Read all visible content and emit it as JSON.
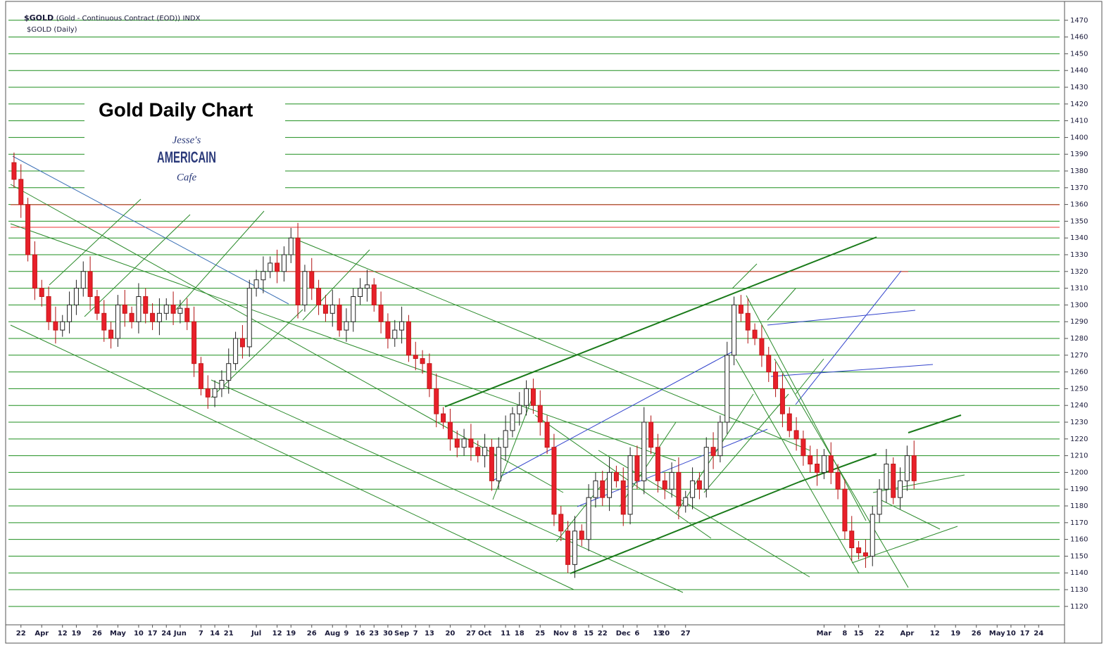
{
  "chart_data": {
    "type": "candlestick",
    "title": "$GOLD",
    "title_detail": "(Gold - Continuous Contract (EOD))",
    "exchange": "INDX",
    "subtitle": "$GOLD (Daily)",
    "annotation": "Gold Daily Chart",
    "logo": [
      "Jesse's",
      "AMERICAIN",
      "Cafe"
    ],
    "categories": [
      null,
      "22",
      null,
      null,
      "Apr",
      null,
      null,
      "12",
      null,
      "19",
      null,
      null,
      "26",
      null,
      null,
      "May",
      null,
      null,
      "10",
      null,
      "17",
      null,
      "24",
      null,
      "Jun",
      null,
      null,
      "7",
      null,
      "14",
      null,
      "21",
      null,
      null,
      null,
      "Jul",
      null,
      null,
      "12",
      null,
      "19",
      null,
      null,
      "26",
      null,
      null,
      "Aug",
      null,
      "9",
      null,
      "16",
      null,
      "23",
      null,
      "30",
      null,
      "Sep",
      null,
      "7",
      null,
      "13",
      null,
      null,
      "20",
      null,
      null,
      "27",
      null,
      "Oct",
      null,
      null,
      "11",
      null,
      "18",
      null,
      null,
      "25",
      null,
      null,
      "Nov",
      null,
      "8",
      null,
      "15",
      null,
      "22",
      null,
      null,
      "Dec",
      null,
      "6",
      null,
      null,
      "13",
      "20",
      null,
      null,
      "27",
      null,
      null,
      null,
      null,
      null,
      null,
      null,
      null,
      null,
      null,
      null,
      null,
      null,
      null,
      null,
      null,
      null,
      null,
      null,
      "Mar",
      null,
      null,
      "8",
      null,
      "15",
      null,
      null,
      "22",
      null,
      null,
      null,
      "Apr",
      null,
      null,
      null,
      "12",
      null,
      null,
      "19",
      null,
      null,
      "26",
      null,
      null,
      "May",
      null,
      "10",
      null,
      "17",
      null,
      "24",
      null
    ],
    "open": [
      1385,
      1375,
      1360,
      1330,
      1310,
      1305,
      1290,
      1285,
      1290,
      1300,
      1310,
      1320,
      1305,
      1295,
      1285,
      1280,
      1300,
      1295,
      1290,
      1305,
      1295,
      1290,
      1295,
      1300,
      1295,
      1298,
      1290,
      1265,
      1250,
      1245,
      1250,
      1255,
      1265,
      1280,
      1275,
      1310,
      1315,
      1320,
      1325,
      1320,
      1330,
      1340,
      1300,
      1320,
      1310,
      1300,
      1295,
      1300,
      1285,
      1290,
      1305,
      1310,
      1312,
      1300,
      1290,
      1280,
      1285,
      1290,
      1270,
      1268,
      1265,
      1250,
      1235,
      1230,
      1220,
      1215,
      1220,
      1215,
      1210,
      1215,
      1195,
      1215,
      1225,
      1235,
      1240,
      1250,
      1240,
      1230,
      1215,
      1175,
      1165,
      1145,
      1165,
      1160,
      1185,
      1195,
      1185,
      1200,
      1195,
      1175,
      1210,
      1195,
      1230,
      1215,
      1195,
      1190,
      1200,
      1180,
      1185,
      1195,
      1190,
      1215,
      1210,
      1230,
      1270,
      1300,
      1295,
      1285,
      1280,
      1270,
      1260,
      1250,
      1235,
      1225,
      1220,
      1210,
      1205,
      1200,
      1210,
      1200,
      1190,
      1165,
      1155,
      1152,
      1150,
      1175,
      1190,
      1205,
      1185,
      1195,
      1210,
      null,
      null,
      null,
      null,
      null,
      null,
      null,
      null,
      null,
      null,
      null,
      null,
      null,
      null,
      null,
      null,
      null,
      null,
      null
    ],
    "high": [
      1391,
      1384,
      1364,
      1338,
      1315,
      1311,
      1299,
      1294,
      1308,
      1315,
      1326,
      1329,
      1309,
      1303,
      1290,
      1306,
      1309,
      1299,
      1313,
      1310,
      1301,
      1304,
      1304,
      1308,
      1303,
      1304,
      1299,
      1269,
      1258,
      1255,
      1261,
      1274,
      1284,
      1288,
      1315,
      1321,
      1329,
      1329,
      1333,
      1335,
      1346,
      1349,
      1324,
      1328,
      1315,
      1306,
      1309,
      1304,
      1298,
      1310,
      1316,
      1321,
      1316,
      1308,
      1295,
      1291,
      1299,
      1294,
      1278,
      1273,
      1271,
      1259,
      1239,
      1238,
      1225,
      1226,
      1229,
      1219,
      1223,
      1220,
      1221,
      1234,
      1239,
      1248,
      1255,
      1256,
      1249,
      1234,
      1223,
      1180,
      1171,
      1174,
      1169,
      1193,
      1200,
      1201,
      1209,
      1204,
      1203,
      1215,
      1216,
      1239,
      1234,
      1223,
      1200,
      1206,
      1209,
      1189,
      1203,
      1200,
      1221,
      1224,
      1234,
      1278,
      1305,
      1306,
      1304,
      1289,
      1288,
      1275,
      1266,
      1259,
      1239,
      1233,
      1225,
      1216,
      1214,
      1214,
      1218,
      1205,
      1196,
      1174,
      1159,
      1160,
      1180,
      1196,
      1214,
      1209,
      1203,
      1216,
      1219,
      null,
      null,
      null,
      null,
      null,
      null,
      null,
      null,
      null,
      null,
      null,
      null,
      null,
      null,
      null,
      null,
      null,
      null,
      null
    ],
    "low": [
      1370,
      1352,
      1326,
      1303,
      1299,
      1285,
      1277,
      1281,
      1283,
      1294,
      1305,
      1297,
      1291,
      1278,
      1274,
      1275,
      1287,
      1286,
      1283,
      1289,
      1285,
      1282,
      1291,
      1288,
      1289,
      1285,
      1257,
      1246,
      1238,
      1239,
      1245,
      1247,
      1261,
      1268,
      1269,
      1305,
      1307,
      1316,
      1313,
      1314,
      1325,
      1292,
      1296,
      1303,
      1294,
      1290,
      1287,
      1281,
      1278,
      1284,
      1300,
      1302,
      1296,
      1283,
      1274,
      1275,
      1277,
      1266,
      1261,
      1259,
      1245,
      1227,
      1226,
      1213,
      1209,
      1210,
      1207,
      1206,
      1203,
      1189,
      1190,
      1207,
      1221,
      1228,
      1234,
      1235,
      1222,
      1211,
      1168,
      1159,
      1140,
      1137,
      1156,
      1153,
      1179,
      1180,
      1177,
      1191,
      1168,
      1169,
      1190,
      1187,
      1211,
      1188,
      1184,
      1185,
      1172,
      1176,
      1178,
      1184,
      1185,
      1202,
      1206,
      1223,
      1264,
      1290,
      1277,
      1276,
      1263,
      1254,
      1245,
      1227,
      1221,
      1213,
      1204,
      1200,
      1192,
      1196,
      1193,
      1184,
      1160,
      1147,
      1148,
      1143,
      1144,
      1170,
      1182,
      1181,
      1178,
      1189,
      1190,
      null,
      null,
      null,
      null,
      null,
      null,
      null,
      null,
      null,
      null,
      null,
      null,
      null,
      null,
      null,
      null,
      null,
      null,
      null
    ],
    "close": [
      1375,
      1360,
      1330,
      1310,
      1305,
      1290,
      1285,
      1290,
      1300,
      1310,
      1320,
      1305,
      1295,
      1285,
      1280,
      1300,
      1295,
      1290,
      1305,
      1295,
      1290,
      1295,
      1300,
      1295,
      1298,
      1290,
      1265,
      1250,
      1245,
      1250,
      1255,
      1265,
      1280,
      1275,
      1310,
      1315,
      1320,
      1325,
      1320,
      1330,
      1340,
      1300,
      1320,
      1310,
      1300,
      1295,
      1300,
      1285,
      1290,
      1305,
      1310,
      1312,
      1300,
      1290,
      1280,
      1285,
      1290,
      1270,
      1268,
      1265,
      1250,
      1235,
      1230,
      1220,
      1215,
      1220,
      1215,
      1210,
      1215,
      1195,
      1215,
      1225,
      1235,
      1240,
      1250,
      1240,
      1230,
      1215,
      1175,
      1165,
      1145,
      1165,
      1160,
      1185,
      1195,
      1185,
      1200,
      1195,
      1175,
      1210,
      1195,
      1230,
      1215,
      1195,
      1190,
      1200,
      1180,
      1185,
      1195,
      1190,
      1215,
      1210,
      1230,
      1270,
      1300,
      1295,
      1285,
      1280,
      1270,
      1260,
      1250,
      1235,
      1225,
      1220,
      1210,
      1205,
      1200,
      1210,
      1200,
      1190,
      1165,
      1155,
      1152,
      1150,
      1175,
      1190,
      1205,
      1185,
      1195,
      1210,
      1195,
      null,
      null,
      null,
      null,
      null,
      null,
      null,
      null,
      null,
      null,
      null,
      null,
      null,
      null,
      null,
      null,
      null,
      null,
      null
    ],
    "up_color": "#ffffff",
    "down_color": "#e8202a",
    "ylim": [
      1109,
      1480
    ],
    "yticks": [
      1120,
      1130,
      1140,
      1150,
      1160,
      1170,
      1180,
      1190,
      1200,
      1210,
      1220,
      1230,
      1240,
      1250,
      1260,
      1270,
      1280,
      1290,
      1300,
      1310,
      1320,
      1330,
      1340,
      1350,
      1360,
      1370,
      1380,
      1390,
      1400,
      1410,
      1420,
      1430,
      1440,
      1450,
      1460,
      1470
    ],
    "grid": true,
    "grid_color": "#1f8f1f"
  }
}
